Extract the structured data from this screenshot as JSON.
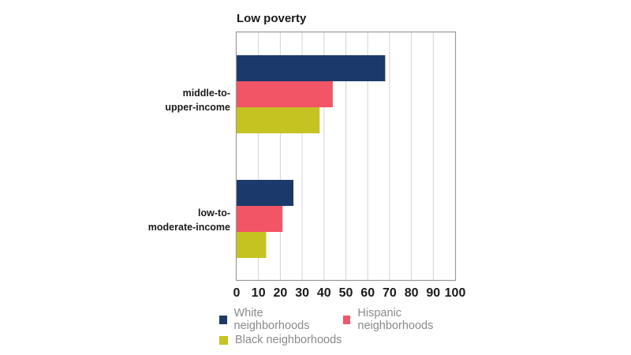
{
  "chart_data": {
    "type": "bar",
    "orientation": "horizontal",
    "title": "Low poverty",
    "categories": [
      "middle-to-upper-income",
      "low-to-moderate-income"
    ],
    "category_label_lines": [
      [
        "middle-to-",
        "upper-income"
      ],
      [
        "low-to-",
        "moderate-income"
      ]
    ],
    "series": [
      {
        "name": "White neighborhoods",
        "values": [
          68,
          26
        ],
        "color": "#1b3a6b"
      },
      {
        "name": "Hispanic neighborhoods",
        "values": [
          44,
          21
        ],
        "color": "#f25565"
      },
      {
        "name": "Black neighborhoods",
        "values": [
          38,
          13.5
        ],
        "color": "#c5c322"
      }
    ],
    "xlim": [
      0,
      100
    ],
    "xticks": [
      0,
      10,
      20,
      30,
      40,
      50,
      60,
      70,
      80,
      90,
      100
    ],
    "xlabel": "",
    "ylabel": "",
    "grid": true,
    "legend_position": "bottom"
  }
}
